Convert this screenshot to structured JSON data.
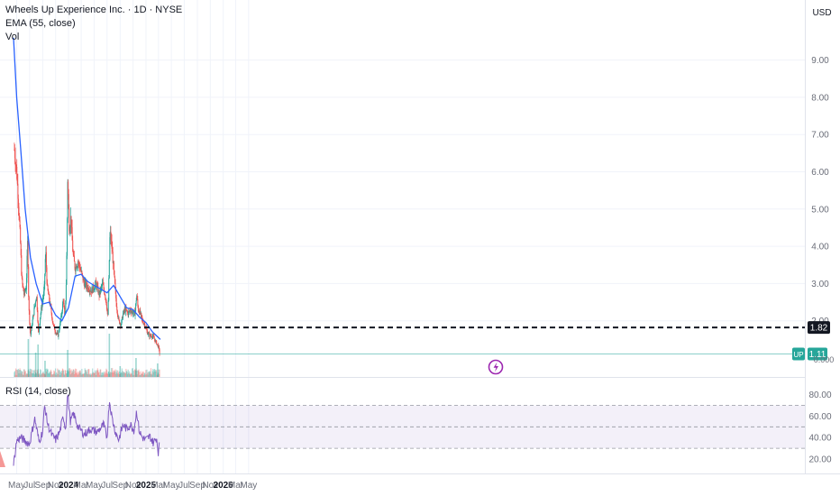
{
  "chart_data": {
    "type": "candlestick",
    "title": "Wheels Up Experience Inc. · 1D · NYSE",
    "indicator_ema": "EMA (55, close)",
    "indicator_vol": "Vol",
    "currency": "USD",
    "price_ticks": [
      "9.00",
      "8.00",
      "7.00",
      "6.00",
      "5.00",
      "4.00",
      "3.00",
      "2.00"
    ],
    "price_lines": [
      {
        "value": 1.82,
        "label": "1.82",
        "style": "dashed",
        "color": "#131722"
      },
      {
        "value": 1.11,
        "label": "1.11",
        "badge": "UP",
        "color": "#26a69a"
      }
    ],
    "volume_axis_label": "0.000",
    "rsi_label": "RSI (14, close)",
    "rsi_ticks": [
      "80.00",
      "60.00",
      "40.00",
      "20.00"
    ],
    "rsi_band": [
      30,
      70
    ],
    "x_ticks": [
      "May",
      "Jul",
      "Sep",
      "Nov",
      "2024",
      "Mar",
      "May",
      "Jul",
      "Sep",
      "Nov",
      "2025",
      "Mar",
      "May",
      "Jul",
      "Sep",
      "Nov",
      "2026",
      "Mar",
      "May"
    ],
    "price_path": [
      [
        "2023-04-20",
        6.6
      ],
      [
        "2023-05-01",
        6.0
      ],
      [
        "2023-05-10",
        5.1
      ],
      [
        "2023-05-18",
        4.2
      ],
      [
        "2023-05-25",
        3.1
      ],
      [
        "2023-06-05",
        2.7
      ],
      [
        "2023-06-15",
        2.9
      ],
      [
        "2023-06-22",
        4.2
      ],
      [
        "2023-06-27",
        2.4
      ],
      [
        "2023-07-05",
        1.6
      ],
      [
        "2023-07-15",
        2.0
      ],
      [
        "2023-07-25",
        2.4
      ],
      [
        "2023-08-03",
        2.7
      ],
      [
        "2023-08-12",
        1.6
      ],
      [
        "2023-08-20",
        2.1
      ],
      [
        "2023-08-30",
        2.5
      ],
      [
        "2023-09-08",
        2.8
      ],
      [
        "2023-09-15",
        3.9
      ],
      [
        "2023-09-22",
        2.9
      ],
      [
        "2023-10-01",
        2.6
      ],
      [
        "2023-10-10",
        2.3
      ],
      [
        "2023-10-20",
        1.9
      ],
      [
        "2023-11-01",
        1.7
      ],
      [
        "2023-11-12",
        1.6
      ],
      [
        "2023-11-25",
        2.0
      ],
      [
        "2023-12-08",
        2.6
      ],
      [
        "2023-12-15",
        2.0
      ],
      [
        "2023-12-22",
        3.2
      ],
      [
        "2023-12-28",
        5.8
      ],
      [
        "2024-01-05",
        4.4
      ],
      [
        "2024-01-12",
        4.8
      ],
      [
        "2024-01-22",
        3.8
      ],
      [
        "2024-02-01",
        3.4
      ],
      [
        "2024-02-15",
        3.6
      ],
      [
        "2024-03-01",
        3.3
      ],
      [
        "2024-03-15",
        3.0
      ],
      [
        "2024-04-01",
        2.9
      ],
      [
        "2024-04-20",
        2.8
      ],
      [
        "2024-05-10",
        3.0
      ],
      [
        "2024-05-25",
        2.7
      ],
      [
        "2024-06-10",
        3.0
      ],
      [
        "2024-06-25",
        2.6
      ],
      [
        "2024-07-05",
        2.1
      ],
      [
        "2024-07-10",
        3.2
      ],
      [
        "2024-07-15",
        4.4
      ],
      [
        "2024-07-25",
        3.9
      ],
      [
        "2024-08-05",
        3.1
      ],
      [
        "2024-08-15",
        2.4
      ],
      [
        "2024-08-25",
        2.0
      ],
      [
        "2024-09-05",
        1.9
      ],
      [
        "2024-09-15",
        2.2
      ],
      [
        "2024-09-25",
        2.3
      ],
      [
        "2024-10-08",
        2.2
      ],
      [
        "2024-10-20",
        2.3
      ],
      [
        "2024-11-01",
        2.2
      ],
      [
        "2024-11-10",
        2.2
      ],
      [
        "2024-11-18",
        2.7
      ],
      [
        "2024-11-25",
        2.3
      ],
      [
        "2024-12-05",
        2.2
      ],
      [
        "2024-12-15",
        2.0
      ],
      [
        "2024-12-26",
        1.9
      ],
      [
        "2025-01-06",
        1.7
      ],
      [
        "2025-01-18",
        1.6
      ],
      [
        "2025-01-30",
        1.6
      ],
      [
        "2025-02-10",
        1.5
      ],
      [
        "2025-02-20",
        1.4
      ],
      [
        "2025-03-01",
        1.3
      ],
      [
        "2025-03-07",
        1.11
      ]
    ],
    "ema_path": [
      [
        "2023-04-16",
        9.6
      ],
      [
        "2023-05-01",
        8.0
      ],
      [
        "2023-05-20",
        6.6
      ],
      [
        "2023-06-10",
        5.0
      ],
      [
        "2023-07-05",
        3.7
      ],
      [
        "2023-08-01",
        3.0
      ],
      [
        "2023-09-01",
        2.45
      ],
      [
        "2023-10-01",
        2.5
      ],
      [
        "2023-11-01",
        2.15
      ],
      [
        "2023-12-01",
        2.0
      ],
      [
        "2024-01-01",
        2.35
      ],
      [
        "2024-02-01",
        3.2
      ],
      [
        "2024-03-01",
        3.25
      ],
      [
        "2024-04-01",
        3.05
      ],
      [
        "2024-05-01",
        2.95
      ],
      [
        "2024-06-01",
        2.85
      ],
      [
        "2024-07-01",
        2.75
      ],
      [
        "2024-08-01",
        2.95
      ],
      [
        "2024-09-01",
        2.65
      ],
      [
        "2024-10-01",
        2.35
      ],
      [
        "2024-11-01",
        2.3
      ],
      [
        "2024-12-01",
        2.1
      ],
      [
        "2025-01-01",
        1.95
      ],
      [
        "2025-02-01",
        1.7
      ],
      [
        "2025-03-10",
        1.5
      ]
    ],
    "rsi_path": [
      [
        "2023-04-16",
        14
      ],
      [
        "2023-05-01",
        37
      ],
      [
        "2023-05-20",
        40
      ],
      [
        "2023-06-15",
        36
      ],
      [
        "2023-07-01",
        34
      ],
      [
        "2023-07-25",
        58
      ],
      [
        "2023-08-15",
        36
      ],
      [
        "2023-09-01",
        46
      ],
      [
        "2023-09-10",
        70
      ],
      [
        "2023-09-25",
        52
      ],
      [
        "2023-10-15",
        42
      ],
      [
        "2023-11-01",
        38
      ],
      [
        "2023-11-20",
        45
      ],
      [
        "2023-12-08",
        60
      ],
      [
        "2023-12-18",
        47
      ],
      [
        "2023-12-28",
        82
      ],
      [
        "2024-01-10",
        55
      ],
      [
        "2024-01-25",
        62
      ],
      [
        "2024-02-15",
        50
      ],
      [
        "2024-03-15",
        43
      ],
      [
        "2024-04-15",
        48
      ],
      [
        "2024-05-15",
        45
      ],
      [
        "2024-06-15",
        52
      ],
      [
        "2024-07-01",
        40
      ],
      [
        "2024-07-12",
        75
      ],
      [
        "2024-07-25",
        58
      ],
      [
        "2024-08-10",
        45
      ],
      [
        "2024-08-25",
        38
      ],
      [
        "2024-09-15",
        52
      ],
      [
        "2024-10-01",
        48
      ],
      [
        "2024-10-20",
        52
      ],
      [
        "2024-11-05",
        47
      ],
      [
        "2024-11-18",
        65
      ],
      [
        "2024-11-30",
        46
      ],
      [
        "2024-12-15",
        40
      ],
      [
        "2025-01-01",
        38
      ],
      [
        "2025-01-20",
        41
      ],
      [
        "2025-02-05",
        35
      ],
      [
        "2025-02-20",
        40
      ],
      [
        "2025-03-01",
        25
      ],
      [
        "2025-03-07",
        36
      ]
    ],
    "volume_spikes": [
      [
        "2023-06-25",
        0.7
      ],
      [
        "2023-07-30",
        0.45
      ],
      [
        "2023-08-10",
        0.6
      ],
      [
        "2023-09-12",
        0.3
      ],
      [
        "2023-12-28",
        0.5
      ],
      [
        "2024-07-12",
        0.8
      ],
      [
        "2024-09-01",
        0.2
      ],
      [
        "2024-11-15",
        0.35
      ],
      [
        "2025-02-25",
        0.25
      ]
    ],
    "colors": {
      "up": "#26a69a",
      "down": "#ef5350",
      "ema": "#2962ff",
      "rsi": "#7e57c2",
      "rsi_band": "#7e57c2",
      "grid": "#f0f3fa",
      "text": "#131722",
      "axis_text": "#6a6d78"
    }
  }
}
